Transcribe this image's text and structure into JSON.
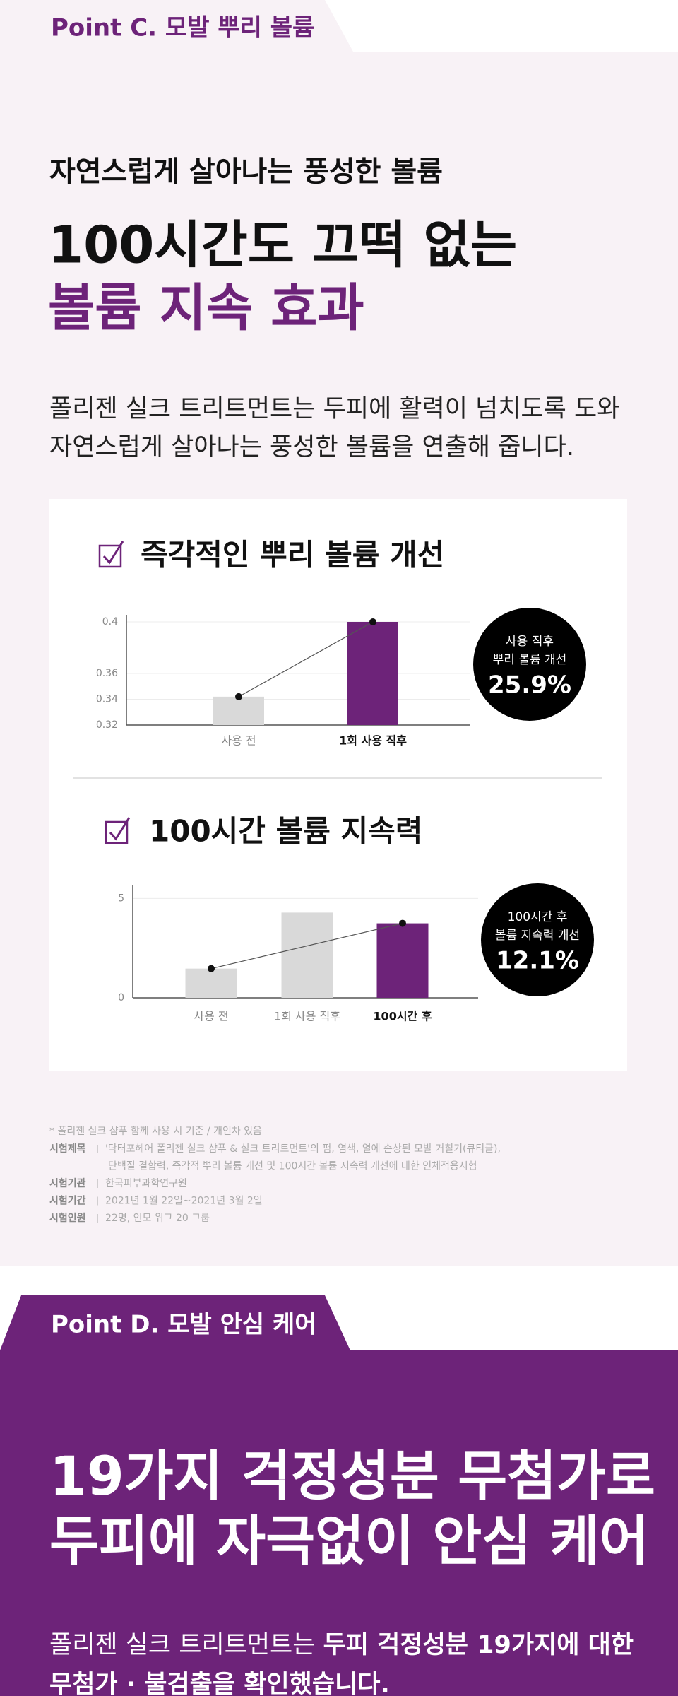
{
  "section_c": {
    "tab": "Point C. 모발 뿌리 볼륨",
    "eyebrow": "자연스럽게 살아나는 풍성한 볼륨",
    "headline": [
      "100시간도 끄떡 없는",
      "볼륨 지속 효과"
    ],
    "body": [
      "폴리젠 실크 트리트먼트는 두피에 활력이 넘치도록 도와",
      "자연스럽게 살아나는 풍성한 볼륨을 연출해 줍니다."
    ],
    "charts": [
      {
        "type": "bar",
        "title": "즉각적인 뿌리 볼륨 개선",
        "categories": [
          "사용 전",
          "1회 사용 직후"
        ],
        "values": [
          0.342,
          0.4
        ],
        "colors": [
          "#d9d9d9",
          "#6d2379"
        ],
        "ylim": [
          0.32,
          0.4
        ],
        "yticks": [
          0.32,
          0.34,
          0.36,
          0.4
        ],
        "grid": true,
        "badge": [
          "사용 직후",
          "뿌리 볼륨 개선"
        ],
        "badge_value": "25.9%"
      },
      {
        "type": "bar",
        "title": "100시간 볼륨 지속력",
        "categories": [
          "사용 전",
          "1회 사용 직후",
          "100시간 후"
        ],
        "values": [
          1.47,
          4.29,
          3.75
        ],
        "colors": [
          "#d9d9d9",
          "#d9d9d9",
          "#6d2379"
        ],
        "ylim": [
          0,
          5.3
        ],
        "yticks": [
          0,
          5
        ],
        "grid": true,
        "badge": [
          "100시간 후",
          "볼륨 지속력 개선"
        ],
        "badge_value": "12.1%"
      }
    ],
    "note": "* 폴리젠 실크 샴푸 함께 사용 시 기준 / 개인차 있음",
    "rows": [
      {
        "label": "시험제목",
        "lines": [
          "'닥터포헤어 폴리젠 실크 샴푸 & 실크 트리트먼트'의 펌, 염색, 열에 손상된 모발 거칠기(큐티클),",
          "단백질 결합력, 즉각적 뿌리 볼륨 개선 및 100시간 볼륨 지속력 개선에 대한 인체적용시험"
        ]
      },
      {
        "label": "시험기관",
        "lines": [
          "한국피부과학연구원"
        ]
      },
      {
        "label": "시험기간",
        "lines": [
          "2021년 1월 22일~2021년 3월 2일"
        ]
      },
      {
        "label": "시험인원",
        "lines": [
          "22명, 인모 위그 20 그룹"
        ]
      }
    ]
  },
  "section_d": {
    "tab": "Point D. 모발 안심 케어",
    "headline": [
      "19가지 걱정성분 무첨가로",
      "두피에 자극없이 안심 케어"
    ],
    "body": [
      [
        {
          "text": "폴리젠 실크 트리트먼트는 ",
          "bold": false
        },
        {
          "text": "두피 걱정성분 19가지에 대한",
          "bold": true
        }
      ],
      [
        {
          "text": "무첨가 · 불검출을 확인했습니다.",
          "bold": true
        }
      ]
    ]
  }
}
